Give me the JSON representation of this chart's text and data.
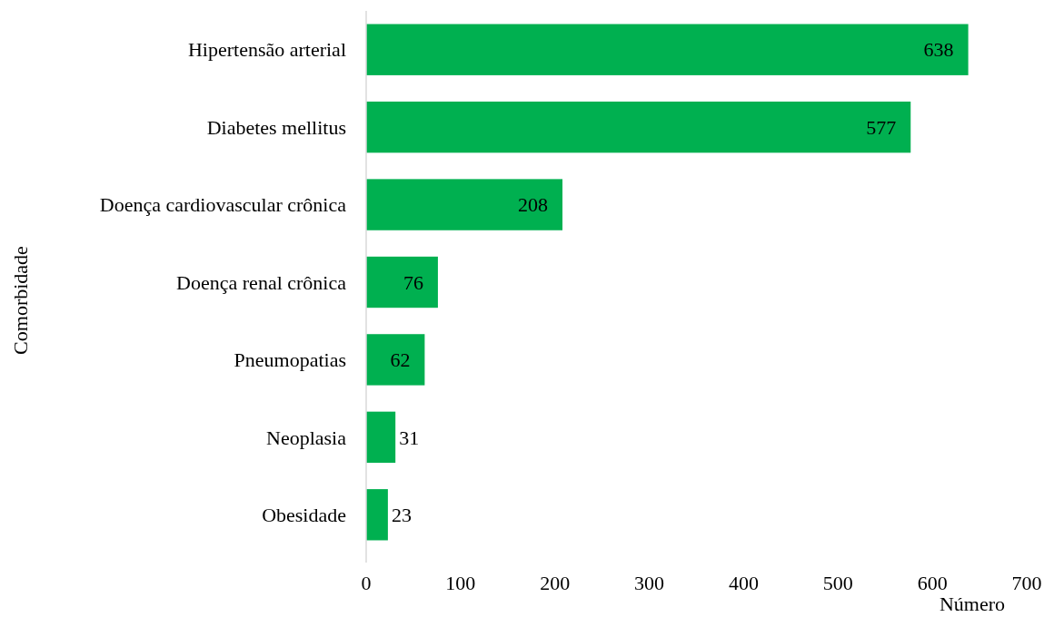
{
  "chart_data": {
    "type": "bar",
    "orientation": "horizontal",
    "xlabel": "Número",
    "ylabel": "Comorbidade",
    "categories": [
      "Hipertensão arterial",
      "Diabetes mellitus",
      "Doença cardiovascular crônica",
      "Doença renal crônica",
      "Pneumopatias",
      "Neoplasia",
      "Obesidade"
    ],
    "values": [
      638,
      577,
      208,
      76,
      62,
      31,
      23
    ],
    "color": "#00b050",
    "xlim": [
      0,
      700
    ],
    "xticks": [
      0,
      100,
      200,
      300,
      400,
      500,
      600,
      700
    ],
    "data_labels": true
  }
}
